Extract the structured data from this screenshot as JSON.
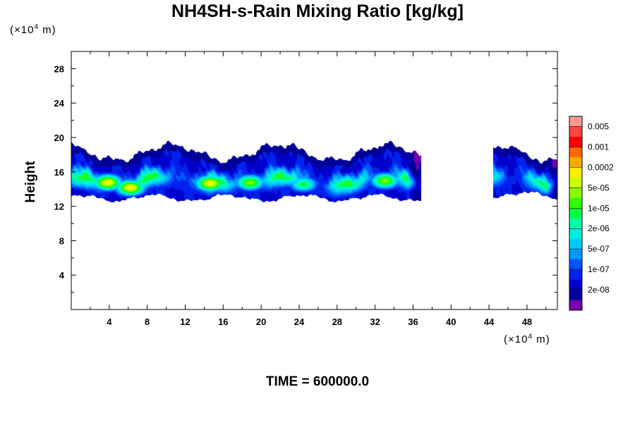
{
  "title": "NH4SH-s-Rain Mixing Ratio [kg/kg]",
  "time_label": "TIME = 600000.0",
  "chart_data": {
    "type": "heatmap",
    "title": "NH4SH-s-Rain Mixing Ratio [kg/kg]",
    "xlabel": "",
    "ylabel": "Height",
    "x_unit": {
      "prefix": "(×10",
      "exponent": "4",
      "suffix": " m)"
    },
    "y_unit": {
      "prefix": "(×10",
      "exponent": "4",
      "suffix": " m)"
    },
    "xlim": [
      0,
      51.2
    ],
    "ylim": [
      0,
      30
    ],
    "xticks": [
      4,
      8,
      12,
      16,
      20,
      24,
      28,
      32,
      36,
      40,
      44,
      48
    ],
    "yticks": [
      4,
      8,
      12,
      16,
      20,
      24,
      28
    ],
    "colorbar": {
      "labels": [
        "0.005",
        "0.001",
        "0.0002",
        "5e-05",
        "1e-05",
        "2e-06",
        "5e-07",
        "1e-07",
        "2e-08"
      ],
      "colors": [
        "#ff9999",
        "#ff4444",
        "#ff0000",
        "#ff6600",
        "#ffaa00",
        "#ffee00",
        "#ccff00",
        "#88ff00",
        "#33ff00",
        "#00ff44",
        "#00ffaa",
        "#00eedd",
        "#00ccff",
        "#0099ff",
        "#0055ff",
        "#0022ee",
        "#0000cc",
        "#000099",
        "#7700aa"
      ]
    },
    "regions": [
      {
        "band": "main",
        "x_range": [
          0,
          36.6
        ],
        "height_range": [
          13.3,
          19.0
        ]
      },
      {
        "band": "right",
        "x_range": [
          44.6,
          51.2
        ],
        "height_range": [
          13.6,
          18.9
        ]
      }
    ],
    "maxima": [
      {
        "x": 3.8,
        "y": 14.8,
        "level": "0.0002"
      },
      {
        "x": 6.2,
        "y": 14.2,
        "level": "0.0002"
      },
      {
        "x": 14.6,
        "y": 14.7,
        "level": "0.0002"
      },
      {
        "x": 18.8,
        "y": 14.8,
        "level": "5e-05"
      },
      {
        "x": 24.4,
        "y": 14.6,
        "level": "1e-05"
      },
      {
        "x": 33.0,
        "y": 15.0,
        "level": "5e-05"
      }
    ]
  }
}
